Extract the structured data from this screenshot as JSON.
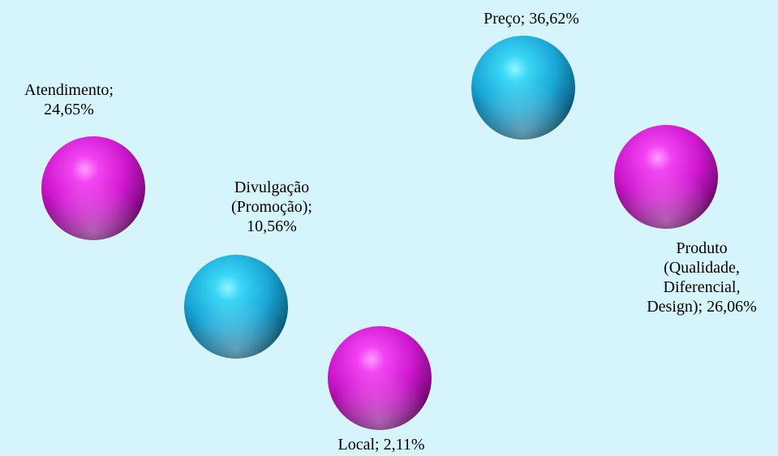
{
  "colors": {
    "background": "#d6f4fb",
    "cyan_base": "#17b4e3",
    "magenta_base": "#dd1bdc",
    "text": "#000000"
  },
  "chart_data": {
    "type": "pie",
    "value_unit": "%",
    "title": "",
    "legend": "none",
    "slices": [
      {
        "category": "Atendimento",
        "value": 24.65,
        "label": "Atendimento;\n24,65%",
        "color": "magenta"
      },
      {
        "category": "Divulgação (Promoção)",
        "value": 10.56,
        "label": "Divulgação\n(Promoção);\n10,56%",
        "color": "cyan"
      },
      {
        "category": "Local",
        "value": 2.11,
        "label": "Local; 2,11%",
        "color": "magenta"
      },
      {
        "category": "Preço",
        "value": 36.62,
        "label": "Preço; 36,62%",
        "color": "cyan"
      },
      {
        "category": "Produto (Qualidade, Diferencial, Design)",
        "value": 26.06,
        "label": "Produto\n(Qualidade,\nDiferencial,\nDesign); 26,06%",
        "color": "magenta"
      }
    ]
  }
}
